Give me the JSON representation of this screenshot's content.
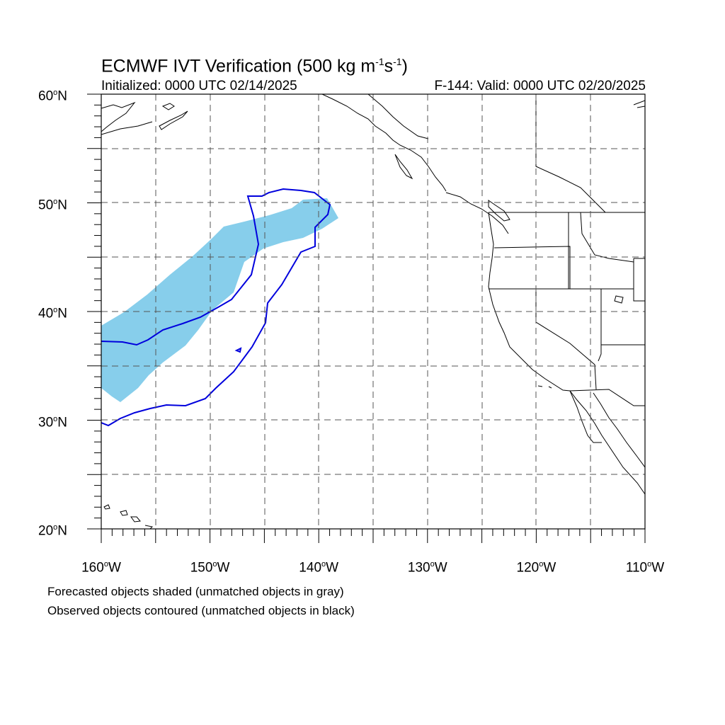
{
  "title": {
    "main": "ECMWF IVT Verification (500 kg m",
    "sup1": "-1",
    "mid": "s",
    "sup2": "-1",
    "end": ")"
  },
  "subtitle": {
    "initialized": "Initialized: 0000 UTC 02/14/2025",
    "valid": "F-144: Valid: 0000 UTC 02/20/2025"
  },
  "map": {
    "projection": "cylindrical-equidistant",
    "lon_range": [
      -160,
      -110
    ],
    "lat_range": [
      20,
      60
    ],
    "gridlines": "dashed, every 5 degrees",
    "colors": {
      "forecast_fill": "#87ceeb",
      "observed_contour": "#0000dd",
      "coastline": "#000000",
      "grid": "#555555"
    }
  },
  "axes": {
    "y_labels": [
      {
        "deg": "60",
        "sym": "o",
        "hem": "N",
        "lat": 60
      },
      {
        "deg": "50",
        "sym": "o",
        "hem": "N",
        "lat": 50
      },
      {
        "deg": "40",
        "sym": "o",
        "hem": "N",
        "lat": 40
      },
      {
        "deg": "30",
        "sym": "o",
        "hem": "N",
        "lat": 30
      },
      {
        "deg": "20",
        "sym": "o",
        "hem": "N",
        "lat": 20
      }
    ],
    "x_labels": [
      {
        "deg": "160",
        "sym": "o",
        "hem": "W",
        "lon": -160
      },
      {
        "deg": "150",
        "sym": "o",
        "hem": "W",
        "lon": -150
      },
      {
        "deg": "140",
        "sym": "o",
        "hem": "W",
        "lon": -140
      },
      {
        "deg": "130",
        "sym": "o",
        "hem": "W",
        "lon": -130
      },
      {
        "deg": "120",
        "sym": "o",
        "hem": "W",
        "lon": -120
      },
      {
        "deg": "110",
        "sym": "o",
        "hem": "W",
        "lon": -110
      }
    ]
  },
  "notes": {
    "forecast": "Forecasted objects shaded (unmatched objects in gray)",
    "observed": "Observed objects contoured (unmatched objects in black)"
  }
}
